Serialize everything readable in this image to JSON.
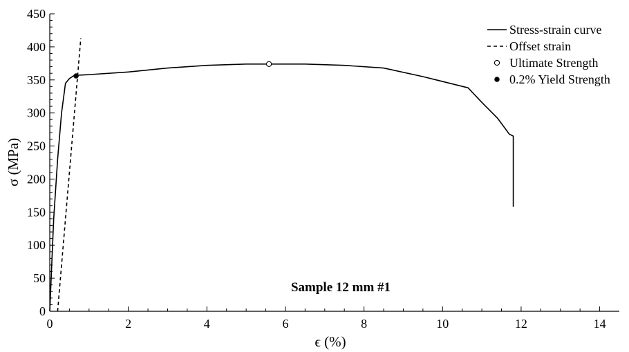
{
  "chart_data": {
    "type": "line",
    "title": "",
    "annotation": "Sample 12 mm #1",
    "xlabel": "ϵ (%)",
    "ylabel": "σ (MPa)",
    "xlim": [
      0,
      14.5
    ],
    "ylim": [
      0,
      450
    ],
    "x_ticks": [
      0,
      2,
      4,
      6,
      8,
      10,
      12,
      14
    ],
    "y_ticks": [
      0,
      50,
      100,
      150,
      200,
      250,
      300,
      350,
      400,
      450
    ],
    "grid": false,
    "legend_position": "top-right",
    "series": [
      {
        "name": "Stress-strain curve",
        "style": "solid",
        "color": "#000000",
        "x": [
          0.0,
          0.05,
          0.1,
          0.2,
          0.3,
          0.4,
          0.5,
          0.55,
          0.6,
          0.67,
          1.0,
          2.0,
          3.0,
          4.0,
          5.0,
          5.58,
          6.5,
          7.5,
          8.5,
          9.5,
          10.65,
          11.0,
          11.4,
          11.7,
          11.8,
          11.8
        ],
        "y": [
          0,
          70,
          140,
          230,
          300,
          345,
          352,
          354,
          356,
          357,
          358,
          362,
          368,
          372,
          374,
          374,
          374,
          372,
          368,
          355,
          338,
          316,
          292,
          268,
          265,
          158
        ]
      },
      {
        "name": "Offset strain",
        "style": "dashed",
        "color": "#000000",
        "x": [
          0.2,
          0.79
        ],
        "y": [
          0,
          413
        ]
      },
      {
        "name": "Ultimate Strength",
        "style": "marker-open",
        "color": "#000000",
        "x": [
          5.58
        ],
        "y": [
          374
        ]
      },
      {
        "name": "0.2% Yield Strength",
        "style": "marker-filled",
        "color": "#000000",
        "x": [
          0.67
        ],
        "y": [
          356
        ]
      }
    ]
  }
}
